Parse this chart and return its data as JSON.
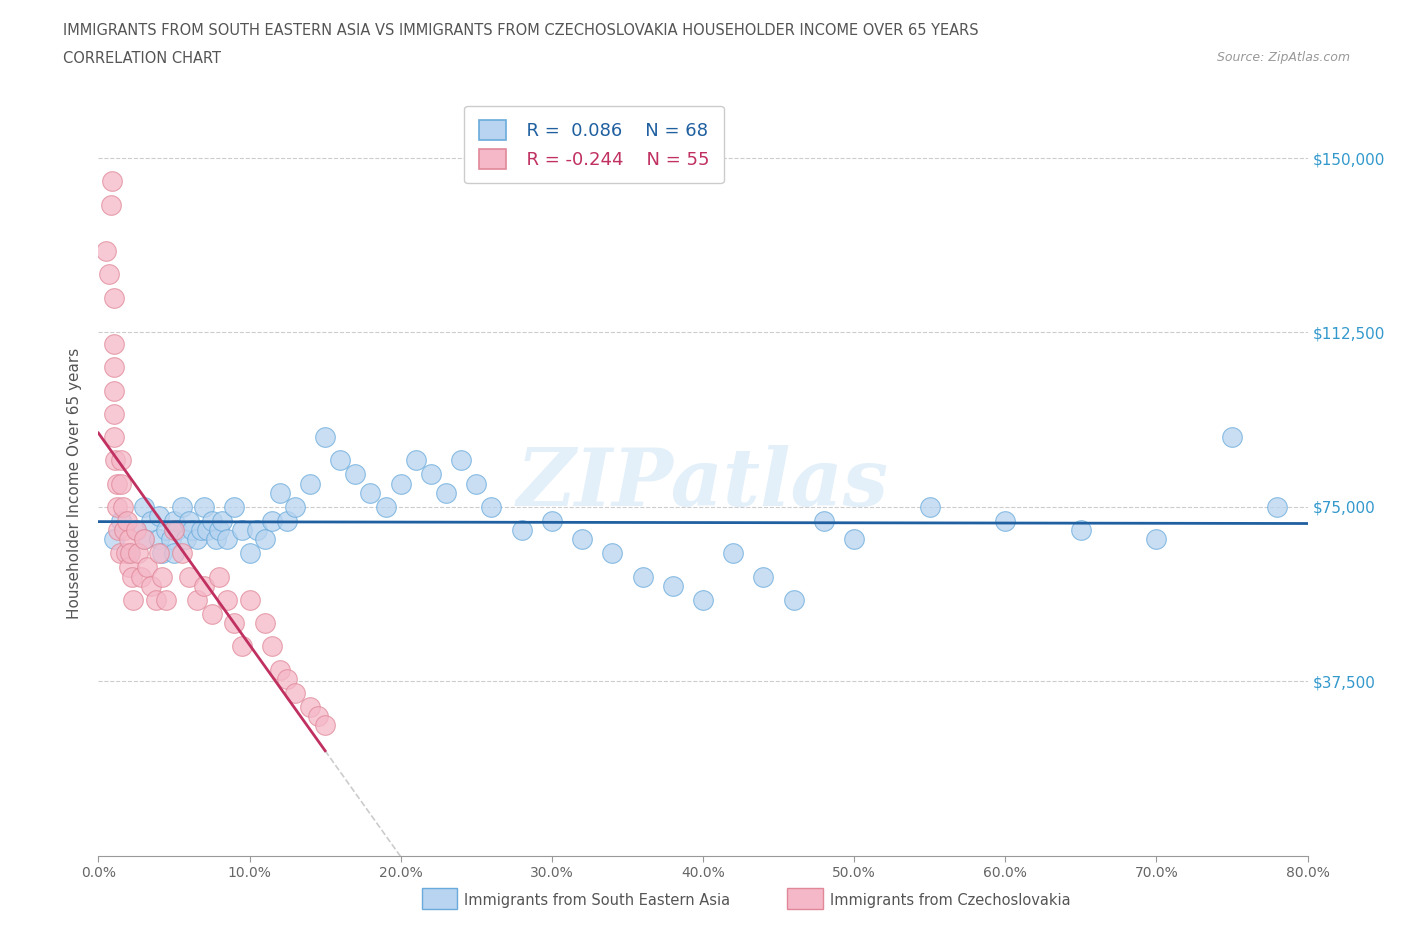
{
  "title_line1": "IMMIGRANTS FROM SOUTH EASTERN ASIA VS IMMIGRANTS FROM CZECHOSLOVAKIA HOUSEHOLDER INCOME OVER 65 YEARS",
  "title_line2": "CORRELATION CHART",
  "source": "Source: ZipAtlas.com",
  "ylabel": "Householder Income Over 65 years",
  "xmin": 0.0,
  "xmax": 0.8,
  "ymin": 0,
  "ymax": 160000,
  "yticks": [
    0,
    37500,
    75000,
    112500,
    150000
  ],
  "ytick_labels": [
    "",
    "$37,500",
    "$75,000",
    "$112,500",
    "$150,000"
  ],
  "xticks": [
    0.0,
    0.1,
    0.2,
    0.3,
    0.4,
    0.5,
    0.6,
    0.7,
    0.8
  ],
  "xtick_labels": [
    "0.0%",
    "10.0%",
    "20.0%",
    "30.0%",
    "40.0%",
    "50.0%",
    "60.0%",
    "70.0%",
    "80.0%"
  ],
  "series1_name": "Immigrants from South Eastern Asia",
  "series1_color": "#b8d4f0",
  "series1_edge_color": "#6aabdb",
  "series1_line_color": "#2060a0",
  "series1_R": 0.086,
  "series1_N": 68,
  "series2_name": "Immigrants from Czechoslovakia",
  "series2_color": "#f5b8c8",
  "series2_edge_color": "#e08898",
  "series2_line_color": "#c03060",
  "series2_R": -0.244,
  "series2_N": 55,
  "watermark": "ZIPatlas",
  "grid_color": "#cccccc",
  "series1_x": [
    0.01,
    0.015,
    0.02,
    0.025,
    0.03,
    0.03,
    0.035,
    0.04,
    0.04,
    0.042,
    0.045,
    0.048,
    0.05,
    0.05,
    0.052,
    0.055,
    0.058,
    0.06,
    0.062,
    0.065,
    0.068,
    0.07,
    0.072,
    0.075,
    0.078,
    0.08,
    0.082,
    0.085,
    0.09,
    0.095,
    0.1,
    0.105,
    0.11,
    0.115,
    0.12,
    0.125,
    0.13,
    0.14,
    0.15,
    0.16,
    0.17,
    0.18,
    0.19,
    0.2,
    0.21,
    0.22,
    0.23,
    0.24,
    0.25,
    0.26,
    0.28,
    0.3,
    0.32,
    0.34,
    0.36,
    0.38,
    0.4,
    0.42,
    0.44,
    0.46,
    0.48,
    0.5,
    0.55,
    0.6,
    0.65,
    0.7,
    0.75,
    0.78
  ],
  "series1_y": [
    68000,
    72000,
    65000,
    70000,
    75000,
    68000,
    72000,
    73000,
    68000,
    65000,
    70000,
    68000,
    72000,
    65000,
    70000,
    75000,
    68000,
    72000,
    70000,
    68000,
    70000,
    75000,
    70000,
    72000,
    68000,
    70000,
    72000,
    68000,
    75000,
    70000,
    65000,
    70000,
    68000,
    72000,
    78000,
    72000,
    75000,
    80000,
    90000,
    85000,
    82000,
    78000,
    75000,
    80000,
    85000,
    82000,
    78000,
    85000,
    80000,
    75000,
    70000,
    72000,
    68000,
    65000,
    60000,
    58000,
    55000,
    65000,
    60000,
    55000,
    72000,
    68000,
    75000,
    72000,
    70000,
    68000,
    90000,
    75000
  ],
  "series2_x": [
    0.005,
    0.007,
    0.008,
    0.009,
    0.01,
    0.01,
    0.01,
    0.01,
    0.01,
    0.01,
    0.011,
    0.012,
    0.012,
    0.013,
    0.014,
    0.015,
    0.015,
    0.016,
    0.017,
    0.018,
    0.019,
    0.02,
    0.02,
    0.021,
    0.022,
    0.023,
    0.025,
    0.026,
    0.028,
    0.03,
    0.032,
    0.035,
    0.038,
    0.04,
    0.042,
    0.045,
    0.05,
    0.055,
    0.06,
    0.065,
    0.07,
    0.075,
    0.08,
    0.085,
    0.09,
    0.095,
    0.1,
    0.11,
    0.115,
    0.12,
    0.125,
    0.13,
    0.14,
    0.145,
    0.15
  ],
  "series2_y": [
    130000,
    125000,
    140000,
    145000,
    120000,
    110000,
    105000,
    100000,
    95000,
    90000,
    85000,
    80000,
    75000,
    70000,
    65000,
    85000,
    80000,
    75000,
    70000,
    65000,
    72000,
    68000,
    62000,
    65000,
    60000,
    55000,
    70000,
    65000,
    60000,
    68000,
    62000,
    58000,
    55000,
    65000,
    60000,
    55000,
    70000,
    65000,
    60000,
    55000,
    58000,
    52000,
    60000,
    55000,
    50000,
    45000,
    55000,
    50000,
    45000,
    40000,
    38000,
    35000,
    32000,
    30000,
    28000
  ]
}
